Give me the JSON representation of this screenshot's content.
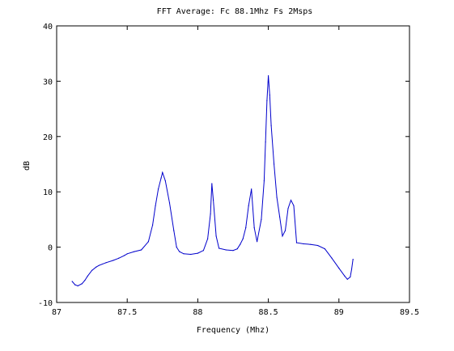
{
  "chart_data": {
    "type": "line",
    "title": "FFT Average: Fc 88.1Mhz Fs 2Msps",
    "xlabel": "Frequency (Mhz)",
    "ylabel": "dB",
    "xlim": [
      87,
      89.5
    ],
    "ylim": [
      -10,
      40
    ],
    "x_ticks": [
      87,
      87.5,
      88,
      88.5,
      89,
      89.5
    ],
    "x_tick_labels": [
      "87",
      "87.5",
      "88",
      "88.5",
      "89",
      "89.5"
    ],
    "y_ticks": [
      -10,
      0,
      10,
      20,
      30,
      40
    ],
    "y_tick_labels": [
      "-10",
      "0",
      "10",
      "20",
      "30",
      "40"
    ],
    "grid": false,
    "legend": "none",
    "series_color": "#0000cc",
    "series": [
      {
        "x": [
          87.11,
          87.13,
          87.15,
          87.18,
          87.2,
          87.22,
          87.25,
          87.28,
          87.3,
          87.35,
          87.4,
          87.44,
          87.48,
          87.5,
          87.55,
          87.6,
          87.65,
          87.68,
          87.7,
          87.72,
          87.74,
          87.75,
          87.77,
          87.8,
          87.83,
          87.85,
          87.87,
          87.9,
          87.95,
          88.0,
          88.04,
          88.07,
          88.09,
          88.1,
          88.11,
          88.13,
          88.15,
          88.2,
          88.25,
          88.28,
          88.3,
          88.32,
          88.34,
          88.36,
          88.38,
          88.4,
          88.42,
          88.45,
          88.47,
          88.48,
          88.49,
          88.5,
          88.51,
          88.52,
          88.54,
          88.56,
          88.58,
          88.6,
          88.62,
          88.64,
          88.66,
          88.68,
          88.7,
          88.75,
          88.8,
          88.85,
          88.9,
          88.95,
          89.0,
          89.04,
          89.06,
          89.08,
          89.09,
          89.1
        ],
        "y": [
          -6.2,
          -6.8,
          -7.0,
          -6.6,
          -6.0,
          -5.2,
          -4.2,
          -3.6,
          -3.3,
          -2.8,
          -2.4,
          -2.0,
          -1.5,
          -1.2,
          -0.8,
          -0.5,
          1.0,
          4.0,
          7.5,
          10.5,
          12.5,
          13.5,
          12.0,
          8.0,
          3.0,
          0.0,
          -0.8,
          -1.2,
          -1.3,
          -1.1,
          -0.6,
          1.5,
          6.0,
          11.5,
          8.5,
          2.0,
          -0.2,
          -0.5,
          -0.6,
          -0.3,
          0.5,
          1.5,
          3.5,
          7.5,
          10.5,
          3.5,
          1.0,
          5.0,
          12.0,
          19.0,
          26.5,
          31.0,
          27.5,
          22.0,
          15.0,
          9.0,
          5.5,
          2.0,
          3.0,
          7.0,
          8.5,
          7.5,
          0.8,
          0.6,
          0.5,
          0.3,
          -0.3,
          -2.0,
          -3.8,
          -5.2,
          -5.8,
          -5.4,
          -4.0,
          -2.2
        ]
      }
    ]
  }
}
